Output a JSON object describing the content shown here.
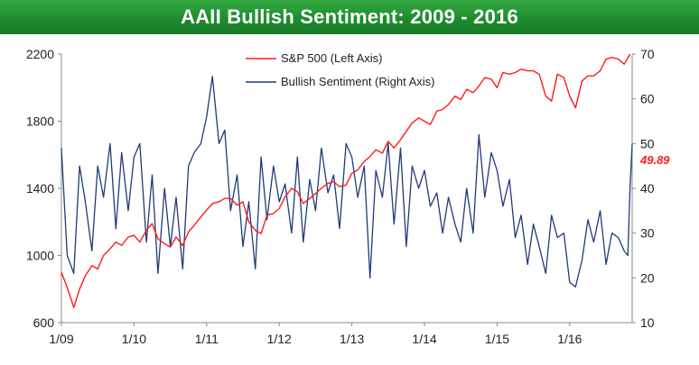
{
  "colors": {
    "banner": "#1e8c2e",
    "sp500": "#ff1a1a",
    "sentiment": "#1f3a7a",
    "callout": "#ff1a1a",
    "axis_text": "#222222",
    "axis_line": "#888888"
  },
  "chart_data": {
    "type": "line",
    "title": "AAII Bullish Sentiment: 2009 - 2016",
    "x_tick_labels": [
      "1/09",
      "1/10",
      "1/11",
      "1/12",
      "1/13",
      "1/14",
      "1/15",
      "1/16"
    ],
    "x_tick_values": [
      2009.0,
      2010.0,
      2011.0,
      2012.0,
      2013.0,
      2014.0,
      2015.0,
      2016.0
    ],
    "xlim": [
      2009.0,
      2016.86
    ],
    "left_axis": {
      "ticks": [
        600,
        1000,
        1400,
        1800,
        2200
      ],
      "ylim": [
        600,
        2200
      ]
    },
    "right_axis": {
      "ticks": [
        10,
        20,
        30,
        40,
        50,
        60,
        70
      ],
      "ylim": [
        10,
        70
      ]
    },
    "legend_position": "top-center",
    "grid": false,
    "callout": {
      "label": "49.89",
      "value": 49.89,
      "series": "Bullish Sentiment (Right Axis)"
    },
    "series": [
      {
        "name": "S&P 500 (Left Axis)",
        "axis": "left",
        "x": [
          2009.0,
          2009.08,
          2009.17,
          2009.25,
          2009.33,
          2009.42,
          2009.5,
          2009.58,
          2009.67,
          2009.75,
          2009.83,
          2009.92,
          2010.0,
          2010.08,
          2010.17,
          2010.25,
          2010.33,
          2010.42,
          2010.5,
          2010.58,
          2010.67,
          2010.75,
          2010.83,
          2010.92,
          2011.0,
          2011.08,
          2011.17,
          2011.25,
          2011.33,
          2011.42,
          2011.5,
          2011.58,
          2011.67,
          2011.75,
          2011.83,
          2011.92,
          2012.0,
          2012.08,
          2012.17,
          2012.25,
          2012.33,
          2012.42,
          2012.5,
          2012.58,
          2012.67,
          2012.75,
          2012.83,
          2012.92,
          2013.0,
          2013.08,
          2013.17,
          2013.25,
          2013.33,
          2013.42,
          2013.5,
          2013.58,
          2013.67,
          2013.75,
          2013.83,
          2013.92,
          2014.0,
          2014.08,
          2014.17,
          2014.25,
          2014.33,
          2014.42,
          2014.5,
          2014.58,
          2014.67,
          2014.75,
          2014.83,
          2014.92,
          2015.0,
          2015.08,
          2015.17,
          2015.25,
          2015.33,
          2015.42,
          2015.5,
          2015.58,
          2015.67,
          2015.75,
          2015.83,
          2015.92,
          2016.0,
          2016.08,
          2016.17,
          2016.25,
          2016.33,
          2016.42,
          2016.5,
          2016.58,
          2016.67,
          2016.75,
          2016.83
        ],
        "values": [
          900,
          810,
          690,
          800,
          880,
          940,
          920,
          1000,
          1040,
          1080,
          1060,
          1110,
          1120,
          1080,
          1150,
          1190,
          1100,
          1070,
          1050,
          1110,
          1060,
          1140,
          1180,
          1230,
          1270,
          1310,
          1320,
          1340,
          1340,
          1300,
          1320,
          1200,
          1150,
          1130,
          1240,
          1250,
          1280,
          1350,
          1400,
          1380,
          1310,
          1340,
          1370,
          1400,
          1430,
          1440,
          1410,
          1420,
          1490,
          1510,
          1560,
          1590,
          1630,
          1610,
          1680,
          1640,
          1690,
          1740,
          1790,
          1820,
          1800,
          1780,
          1860,
          1870,
          1900,
          1950,
          1930,
          1990,
          1970,
          2010,
          2060,
          2050,
          2000,
          2090,
          2080,
          2090,
          2110,
          2100,
          2100,
          2080,
          1950,
          1920,
          2080,
          2060,
          1950,
          1880,
          2040,
          2070,
          2070,
          2100,
          2170,
          2180,
          2170,
          2140,
          2200
        ]
      },
      {
        "name": "Bullish Sentiment (Right Axis)",
        "axis": "right",
        "x": [
          2009.0,
          2009.08,
          2009.17,
          2009.25,
          2009.33,
          2009.42,
          2009.5,
          2009.58,
          2009.67,
          2009.75,
          2009.83,
          2009.92,
          2010.0,
          2010.08,
          2010.17,
          2010.25,
          2010.33,
          2010.42,
          2010.5,
          2010.58,
          2010.67,
          2010.75,
          2010.83,
          2010.92,
          2011.0,
          2011.08,
          2011.17,
          2011.25,
          2011.33,
          2011.42,
          2011.5,
          2011.58,
          2011.67,
          2011.75,
          2011.83,
          2011.92,
          2012.0,
          2012.08,
          2012.17,
          2012.25,
          2012.33,
          2012.42,
          2012.5,
          2012.58,
          2012.67,
          2012.75,
          2012.83,
          2012.92,
          2013.0,
          2013.08,
          2013.17,
          2013.25,
          2013.33,
          2013.42,
          2013.5,
          2013.58,
          2013.67,
          2013.75,
          2013.83,
          2013.92,
          2014.0,
          2014.08,
          2014.17,
          2014.25,
          2014.33,
          2014.42,
          2014.5,
          2014.58,
          2014.67,
          2014.75,
          2014.83,
          2014.92,
          2015.0,
          2015.08,
          2015.17,
          2015.25,
          2015.33,
          2015.42,
          2015.5,
          2015.58,
          2015.67,
          2015.75,
          2015.83,
          2015.92,
          2016.0,
          2016.08,
          2016.17,
          2016.25,
          2016.33,
          2016.42,
          2016.5,
          2016.58,
          2016.67,
          2016.75,
          2016.8,
          2016.83,
          2016.86
        ],
        "values": [
          49,
          25,
          21,
          45,
          37,
          26,
          45,
          38,
          50,
          31,
          48,
          35,
          47,
          50,
          28,
          43,
          21,
          40,
          27,
          38,
          22,
          45,
          48,
          50,
          56,
          65,
          50,
          53,
          35,
          43,
          27,
          37,
          22,
          47,
          33,
          45,
          37,
          41,
          30,
          47,
          28,
          42,
          35,
          49,
          39,
          43,
          31,
          50,
          47,
          38,
          45,
          20,
          44,
          38,
          50,
          32,
          49,
          27,
          45,
          40,
          44,
          36,
          39,
          30,
          38,
          32,
          28,
          40,
          30,
          52,
          38,
          48,
          44,
          36,
          42,
          29,
          34,
          23,
          32,
          27,
          21,
          34,
          29,
          30,
          19,
          18,
          24,
          33,
          28,
          35,
          23,
          30,
          29,
          26,
          25,
          40,
          49.89
        ]
      }
    ]
  }
}
